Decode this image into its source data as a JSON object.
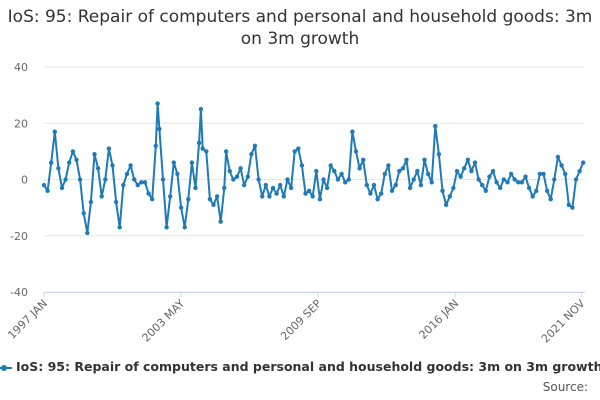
{
  "chart_data": {
    "type": "line",
    "title": "IoS: 95: Repair of computers and personal and household goods: 3m on 3m growth",
    "xlabel": "",
    "ylabel": "",
    "ylim": [
      -40,
      40
    ],
    "yticks": [
      -40,
      -20,
      0,
      20,
      40
    ],
    "x_tick_labels": [
      "1997 JAN",
      "2003 MAY",
      "2009 SEP",
      "2016 JAN",
      "2021 NOV"
    ],
    "x_range": [
      "1997-01",
      "2022-01"
    ],
    "grid": true,
    "legend_position": "bottom",
    "series": [
      {
        "name": "IoS: 95: Repair of computers and personal and household goods: 3m on 3m growth",
        "color": "#1f7ab8",
        "points": [
          [
            "1997-01",
            -2
          ],
          [
            "1997-03",
            -4
          ],
          [
            "1997-05",
            6
          ],
          [
            "1997-07",
            17
          ],
          [
            "1997-09",
            4
          ],
          [
            "1997-11",
            -3
          ],
          [
            "1998-01",
            0
          ],
          [
            "1998-03",
            6
          ],
          [
            "1998-05",
            10
          ],
          [
            "1998-07",
            7
          ],
          [
            "1998-09",
            0
          ],
          [
            "1998-11",
            -12
          ],
          [
            "1999-01",
            -19
          ],
          [
            "1999-03",
            -8
          ],
          [
            "1999-05",
            9
          ],
          [
            "1999-07",
            4
          ],
          [
            "1999-09",
            -6
          ],
          [
            "1999-11",
            0
          ],
          [
            "2000-01",
            11
          ],
          [
            "2000-03",
            5
          ],
          [
            "2000-05",
            -8
          ],
          [
            "2000-07",
            -17
          ],
          [
            "2000-09",
            -2
          ],
          [
            "2000-11",
            2
          ],
          [
            "2001-01",
            5
          ],
          [
            "2001-03",
            0
          ],
          [
            "2001-05",
            -2
          ],
          [
            "2001-07",
            -1
          ],
          [
            "2001-09",
            -1
          ],
          [
            "2001-11",
            -5
          ],
          [
            "2002-01",
            -7
          ],
          [
            "2002-03",
            12
          ],
          [
            "2002-04",
            27
          ],
          [
            "2002-05",
            18
          ],
          [
            "2002-07",
            0
          ],
          [
            "2002-09",
            -17
          ],
          [
            "2002-11",
            -6
          ],
          [
            "2003-01",
            6
          ],
          [
            "2003-03",
            2
          ],
          [
            "2003-05",
            -10
          ],
          [
            "2003-07",
            -17
          ],
          [
            "2003-09",
            -7
          ],
          [
            "2003-11",
            6
          ],
          [
            "2004-01",
            -3
          ],
          [
            "2004-03",
            13
          ],
          [
            "2004-04",
            25
          ],
          [
            "2004-05",
            11
          ],
          [
            "2004-07",
            10
          ],
          [
            "2004-09",
            -7
          ],
          [
            "2004-11",
            -9
          ],
          [
            "2005-01",
            -6
          ],
          [
            "2005-03",
            -15
          ],
          [
            "2005-05",
            -3
          ],
          [
            "2005-06",
            10
          ],
          [
            "2005-08",
            3
          ],
          [
            "2005-10",
            0
          ],
          [
            "2005-12",
            1
          ],
          [
            "2006-02",
            4
          ],
          [
            "2006-04",
            -2
          ],
          [
            "2006-06",
            1
          ],
          [
            "2006-08",
            9
          ],
          [
            "2006-10",
            12
          ],
          [
            "2006-12",
            0
          ],
          [
            "2007-02",
            -6
          ],
          [
            "2007-04",
            -2
          ],
          [
            "2007-06",
            -6
          ],
          [
            "2007-08",
            -3
          ],
          [
            "2007-10",
            -5
          ],
          [
            "2007-12",
            -2
          ],
          [
            "2008-02",
            -6
          ],
          [
            "2008-04",
            0
          ],
          [
            "2008-06",
            -3
          ],
          [
            "2008-08",
            10
          ],
          [
            "2008-10",
            11
          ],
          [
            "2008-12",
            5
          ],
          [
            "2009-02",
            -5
          ],
          [
            "2009-04",
            -4
          ],
          [
            "2009-06",
            -6
          ],
          [
            "2009-08",
            3
          ],
          [
            "2009-10",
            -7
          ],
          [
            "2009-12",
            0
          ],
          [
            "2010-02",
            -3
          ],
          [
            "2010-04",
            5
          ],
          [
            "2010-06",
            3
          ],
          [
            "2010-08",
            0
          ],
          [
            "2010-10",
            2
          ],
          [
            "2010-12",
            -1
          ],
          [
            "2011-02",
            0
          ],
          [
            "2011-04",
            17
          ],
          [
            "2011-06",
            10
          ],
          [
            "2011-08",
            4
          ],
          [
            "2011-10",
            7
          ],
          [
            "2011-12",
            -2
          ],
          [
            "2012-02",
            -5
          ],
          [
            "2012-04",
            -2
          ],
          [
            "2012-06",
            -7
          ],
          [
            "2012-08",
            -5
          ],
          [
            "2012-10",
            2
          ],
          [
            "2012-12",
            5
          ],
          [
            "2013-02",
            -4
          ],
          [
            "2013-04",
            -2
          ],
          [
            "2013-06",
            3
          ],
          [
            "2013-08",
            4
          ],
          [
            "2013-10",
            7
          ],
          [
            "2013-12",
            -3
          ],
          [
            "2014-02",
            0
          ],
          [
            "2014-04",
            3
          ],
          [
            "2014-06",
            -2
          ],
          [
            "2014-08",
            7
          ],
          [
            "2014-10",
            2
          ],
          [
            "2014-12",
            -1
          ],
          [
            "2015-02",
            19
          ],
          [
            "2015-04",
            9
          ],
          [
            "2015-06",
            -4
          ],
          [
            "2015-08",
            -9
          ],
          [
            "2015-10",
            -6
          ],
          [
            "2015-12",
            -3
          ],
          [
            "2016-02",
            3
          ],
          [
            "2016-04",
            1
          ],
          [
            "2016-06",
            4
          ],
          [
            "2016-08",
            7
          ],
          [
            "2016-10",
            3
          ],
          [
            "2016-12",
            6
          ],
          [
            "2017-02",
            0
          ],
          [
            "2017-04",
            -2
          ],
          [
            "2017-06",
            -4
          ],
          [
            "2017-08",
            1
          ],
          [
            "2017-10",
            3
          ],
          [
            "2017-12",
            -1
          ],
          [
            "2018-02",
            -3
          ],
          [
            "2018-04",
            0
          ],
          [
            "2018-06",
            -1
          ],
          [
            "2018-08",
            2
          ],
          [
            "2018-10",
            0
          ],
          [
            "2018-12",
            -1
          ],
          [
            "2019-02",
            -1
          ],
          [
            "2019-04",
            1
          ],
          [
            "2019-06",
            -3
          ],
          [
            "2019-08",
            -6
          ],
          [
            "2019-10",
            -4
          ],
          [
            "2019-12",
            2
          ],
          [
            "2020-02",
            2
          ],
          [
            "2020-04",
            -4
          ],
          [
            "2020-06",
            -7
          ],
          [
            "2020-08",
            0
          ],
          [
            "2020-10",
            8
          ],
          [
            "2020-12",
            5
          ],
          [
            "2021-02",
            2
          ],
          [
            "2021-04",
            -9
          ],
          [
            "2021-06",
            -10
          ],
          [
            "2021-08",
            0
          ],
          [
            "2021-10",
            3
          ],
          [
            "2021-12",
            6
          ]
        ]
      }
    ]
  },
  "legend": {
    "label": "IoS: 95: Repair of computers and personal and household goods: 3m on 3m growth"
  },
  "source_label": "Source:"
}
